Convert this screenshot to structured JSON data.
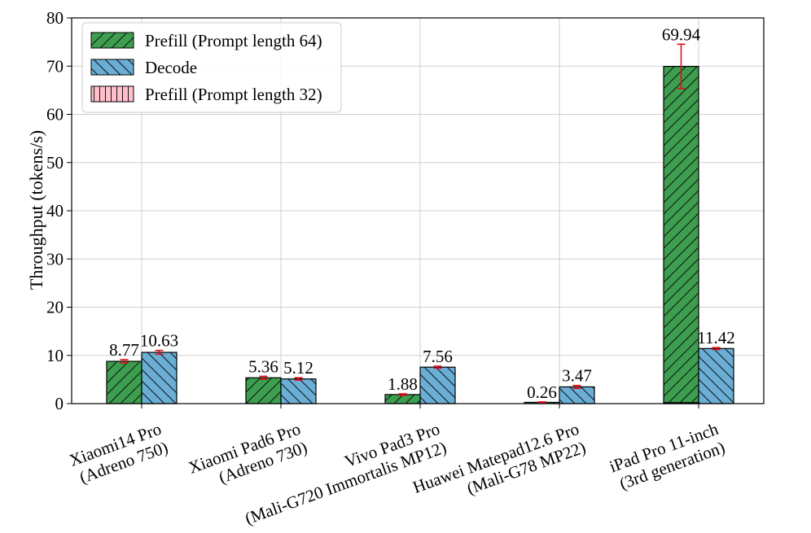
{
  "chart_data": {
    "type": "bar",
    "ylabel": "Throughput (tokens/s)",
    "xlabel": "",
    "ylim": [
      0,
      80
    ],
    "yticks": [
      0,
      10,
      20,
      30,
      40,
      50,
      60,
      70,
      80
    ],
    "grid": true,
    "legend_position": "top-left",
    "categories": [
      {
        "line1": "Xiaomi14 Pro",
        "line2": "(Adreno 750)"
      },
      {
        "line1": "Xiaomi Pad6 Pro",
        "line2": "(Adreno 730)"
      },
      {
        "line1": "Vivo Pad3 Pro",
        "line2": "(Mali-G720 Immortalis MP12)"
      },
      {
        "line1": "Huawei Matepad12.6 Pro",
        "line2": "(Mali-G78 MP22)"
      },
      {
        "line1": "iPad Pro 11-inch",
        "line2": "(3rd generation)"
      }
    ],
    "series": [
      {
        "name": "Prefill (Prompt length 64)",
        "color": "#3c9e4e",
        "hatch": "forward-diagonal",
        "values": [
          8.77,
          5.36,
          1.88,
          0.26,
          69.94
        ],
        "errors": [
          0.35,
          0.3,
          0.15,
          0.1,
          4.6
        ],
        "labels": [
          "8.77",
          "5.36",
          "1.88",
          "0.26",
          "69.94"
        ]
      },
      {
        "name": "Decode",
        "color": "#6aaed6",
        "hatch": "back-diagonal",
        "values": [
          10.63,
          5.12,
          7.56,
          3.47,
          11.42
        ],
        "errors": [
          0.4,
          0.25,
          0.2,
          0.3,
          0.2
        ],
        "labels": [
          "10.63",
          "5.12",
          "7.56",
          "3.47",
          "11.42"
        ]
      },
      {
        "name": "Prefill (Prompt length 32)",
        "color": "#ffc0cb",
        "hatch": "vertical",
        "values": [
          0,
          0,
          0,
          0,
          0.2
        ],
        "errors": [
          0,
          0,
          0,
          0,
          0
        ],
        "labels": []
      }
    ],
    "error_bar_color": "#e0101a"
  }
}
